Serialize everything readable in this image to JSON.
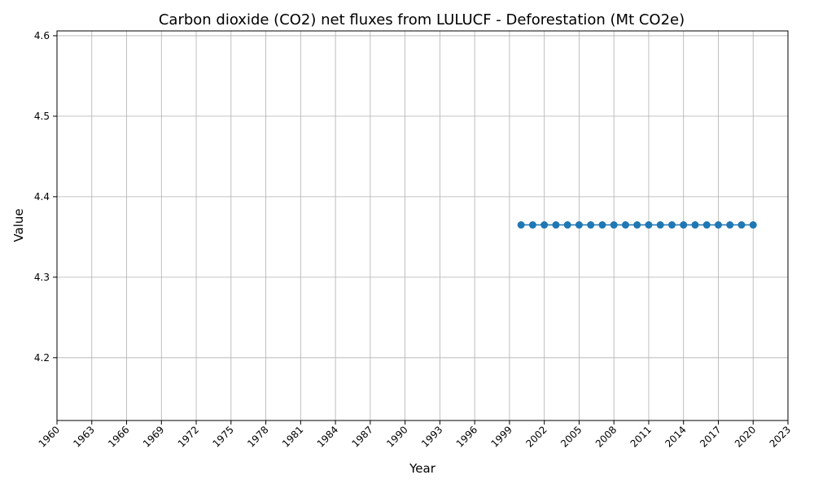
{
  "chart_data": {
    "type": "line",
    "title": "Carbon dioxide (CO2) net fluxes from LULUCF - Deforestation (Mt CO2e)",
    "xlabel": "Year",
    "ylabel": "Value",
    "xlim": [
      1960,
      2023
    ],
    "ylim": [
      4.122,
      4.606
    ],
    "x_ticks": [
      "1960",
      "1963",
      "1966",
      "1969",
      "1972",
      "1975",
      "1978",
      "1981",
      "1984",
      "1987",
      "1990",
      "1993",
      "1996",
      "1999",
      "2002",
      "2005",
      "2008",
      "2011",
      "2014",
      "2017",
      "2020",
      "2023"
    ],
    "y_ticks": [
      "4.2",
      "4.3",
      "4.4",
      "4.5",
      "4.6"
    ],
    "grid": true,
    "series": [
      {
        "color": "#1f77b4",
        "marker": "circle",
        "x": [
          2000,
          2001,
          2002,
          2003,
          2004,
          2005,
          2006,
          2007,
          2008,
          2009,
          2010,
          2011,
          2012,
          2013,
          2014,
          2015,
          2016,
          2017,
          2018,
          2019,
          2020
        ],
        "values": [
          4.365,
          4.365,
          4.365,
          4.365,
          4.365,
          4.365,
          4.365,
          4.365,
          4.365,
          4.365,
          4.365,
          4.365,
          4.365,
          4.365,
          4.365,
          4.365,
          4.365,
          4.365,
          4.365,
          4.365,
          4.365
        ]
      }
    ]
  }
}
